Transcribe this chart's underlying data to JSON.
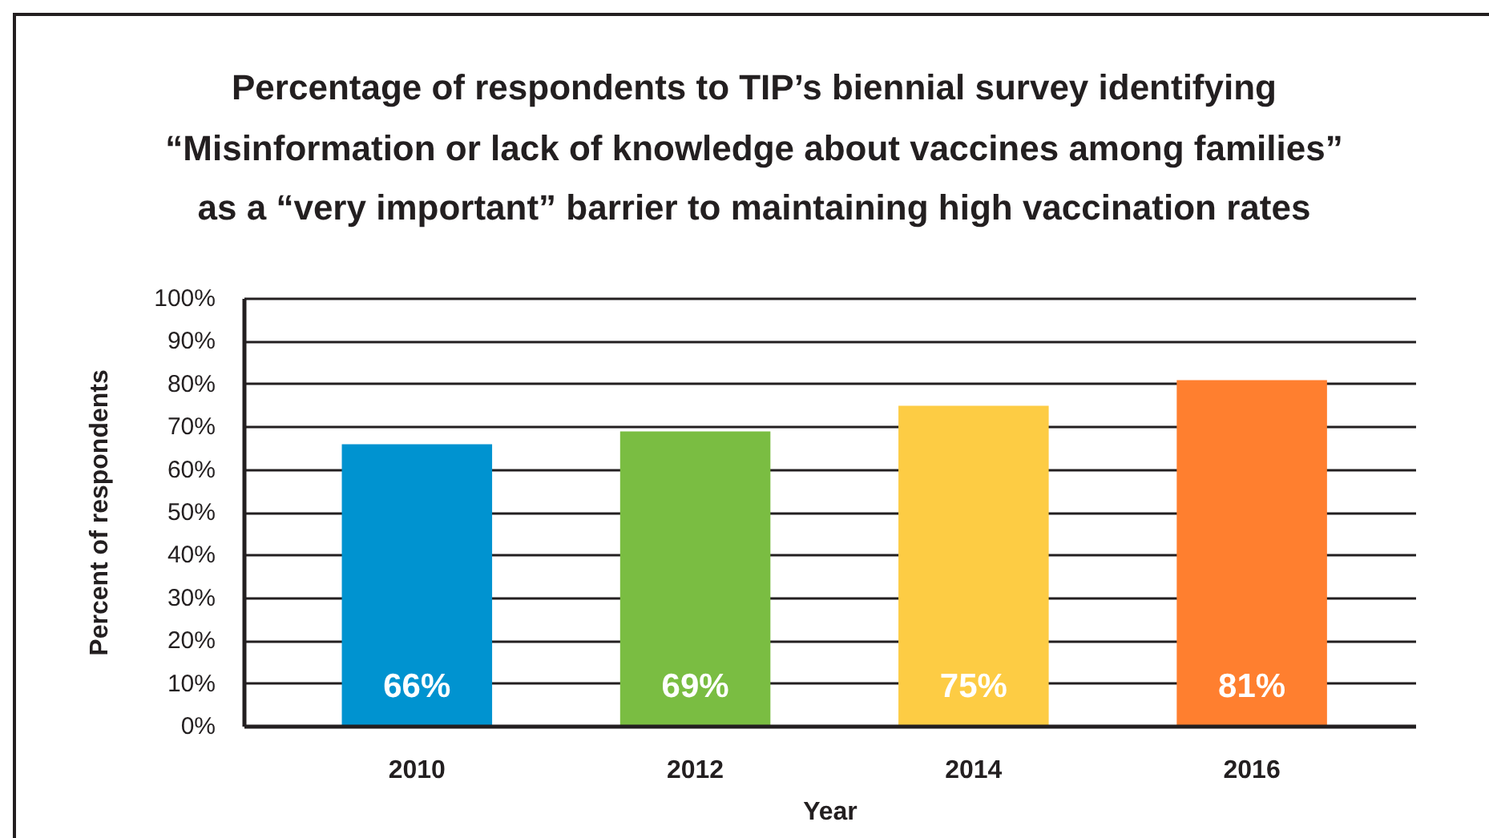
{
  "chart_data": {
    "type": "bar",
    "title": "Percentage of respondents to TIP’s biennial survey identifying\n“Misinformation or lack of knowledge about vaccines among families”\nas a “very important” barrier to maintaining high vaccination rates",
    "xlabel": "Year",
    "ylabel": "Percent of respondents",
    "categories": [
      "2010",
      "2012",
      "2014",
      "2016"
    ],
    "values": [
      66,
      69,
      75,
      81
    ],
    "colors": [
      "#0093d0",
      "#7abd42",
      "#fdcc44",
      "#ff7f2f"
    ],
    "value_labels": [
      "66%",
      "69%",
      "75%",
      "81%"
    ],
    "ylim": [
      0,
      100
    ],
    "yticks": [
      {
        "value": 0,
        "label": "0%"
      },
      {
        "value": 10,
        "label": "10%"
      },
      {
        "value": 20,
        "label": "20%"
      },
      {
        "value": 30,
        "label": "30%"
      },
      {
        "value": 40,
        "label": "40%"
      },
      {
        "value": 50,
        "label": "50%"
      },
      {
        "value": 60,
        "label": "60%"
      },
      {
        "value": 70,
        "label": "70%"
      },
      {
        "value": 80,
        "label": "80%"
      },
      {
        "value": 90,
        "label": "90%"
      },
      {
        "value": 100,
        "label": "100%"
      }
    ],
    "grid": "y"
  }
}
